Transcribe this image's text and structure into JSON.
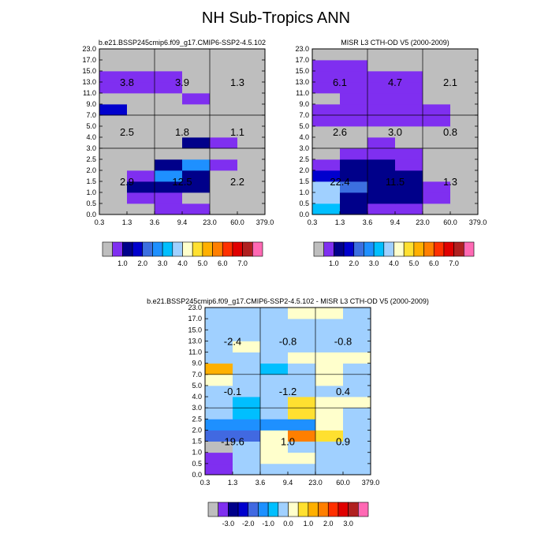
{
  "title": "NH Sub-Tropics ANN",
  "chart_data": {
    "type": "heatmap",
    "x_tick_labels": [
      "0.3",
      "1.3",
      "3.6",
      "9.4",
      "23.0",
      "60.0",
      "379.0"
    ],
    "y_tick_labels": [
      "0.0",
      "0.5",
      "1.0",
      "1.5",
      "2.0",
      "2.5",
      "3.0",
      "4.0",
      "5.0",
      "7.0",
      "9.0",
      "11.0",
      "13.0",
      "15.0",
      "17.0",
      "23.0"
    ],
    "colors": {
      "background": "#bebebe",
      "s0": "#bebebe",
      "s1": "#7f2ff0",
      "s2": "#00008a",
      "s3": "#0000cd",
      "s4": "#3c6fe0",
      "s5": "#1e90ff",
      "s6": "#00bfff",
      "s7": "#a0d0ff",
      "s8": "#ffffcc",
      "s9": "#ffe030",
      "s10": "#ffb000",
      "s11": "#ff7f00",
      "s12": "#ff3000",
      "s13": "#e00000",
      "s14": "#b02020",
      "s15": "#ff69b4",
      "d0": "#bebebe",
      "d1": "#7f2ff0",
      "d2": "#00008a",
      "d3": "#0000cd",
      "d4": "#4169e1",
      "d5": "#1e90ff",
      "d6": "#00bfff",
      "d7": "#a0d0ff",
      "d8": "#ffffcc",
      "d9": "#ffe030",
      "d10": "#ffb000",
      "d11": "#ff7f00",
      "d12": "#ff3000",
      "d13": "#e00000",
      "d14": "#b02020",
      "d15": "#ff69b4"
    },
    "panels": [
      {
        "name": "model",
        "title": "b.e21.BSSP245cmip6.f09_g17.CMIP6-SSP2-4.5.102",
        "summary_values": [
          {
            "label": "3.8",
            "col": "low",
            "row": "high"
          },
          {
            "label": "3.9",
            "col": "mid",
            "row": "high"
          },
          {
            "label": "1.3",
            "col": "high",
            "row": "high"
          },
          {
            "label": "2.5",
            "col": "low",
            "row": "mid"
          },
          {
            "label": "1.8",
            "col": "mid",
            "row": "mid"
          },
          {
            "label": "1.1",
            "col": "high",
            "row": "mid"
          },
          {
            "label": "2.9",
            "col": "low",
            "row": "low"
          },
          {
            "label": "12.5",
            "col": "mid",
            "row": "low"
          },
          {
            "label": "2.2",
            "col": "high",
            "row": "low"
          }
        ],
        "cells": [
          [
            0,
            0,
            1,
            1,
            0,
            0
          ],
          [
            0,
            1,
            1,
            0,
            0,
            0
          ],
          [
            0,
            2,
            2,
            2,
            0,
            0
          ],
          [
            0,
            1,
            5,
            2,
            0,
            0
          ],
          [
            0,
            0,
            2,
            5,
            1,
            0
          ],
          [
            0,
            0,
            0,
            0,
            0,
            0
          ],
          [
            0,
            0,
            0,
            2,
            1,
            0
          ],
          [
            0,
            0,
            0,
            0,
            0,
            0
          ],
          [
            0,
            0,
            0,
            0,
            0,
            0
          ],
          [
            3,
            0,
            0,
            0,
            0,
            0
          ],
          [
            0,
            0,
            0,
            1,
            0,
            0
          ],
          [
            1,
            1,
            1,
            0,
            0,
            0
          ],
          [
            1,
            1,
            1,
            0,
            0,
            0
          ],
          [
            0,
            0,
            0,
            0,
            0,
            0
          ],
          [
            0,
            0,
            0,
            0,
            0,
            0
          ]
        ]
      },
      {
        "name": "obs",
        "title": "MISR L3 CTH-OD V5 (2000-2009)",
        "summary_values": [
          {
            "label": "6.1",
            "col": "low",
            "row": "high"
          },
          {
            "label": "4.7",
            "col": "mid",
            "row": "high"
          },
          {
            "label": "2.1",
            "col": "high",
            "row": "high"
          },
          {
            "label": "2.6",
            "col": "low",
            "row": "mid"
          },
          {
            "label": "3.0",
            "col": "mid",
            "row": "mid"
          },
          {
            "label": "0.8",
            "col": "high",
            "row": "mid"
          },
          {
            "label": "22.4",
            "col": "low",
            "row": "low"
          },
          {
            "label": "11.5",
            "col": "mid",
            "row": "low"
          },
          {
            "label": "1.3",
            "col": "high",
            "row": "low"
          }
        ],
        "cells": [
          [
            6,
            2,
            1,
            1,
            0,
            0
          ],
          [
            7,
            2,
            2,
            2,
            1,
            0
          ],
          [
            7,
            4,
            2,
            2,
            1,
            0
          ],
          [
            3,
            2,
            2,
            2,
            0,
            0
          ],
          [
            1,
            2,
            2,
            1,
            0,
            0
          ],
          [
            0,
            1,
            1,
            1,
            0,
            0
          ],
          [
            0,
            0,
            1,
            0,
            0,
            0
          ],
          [
            0,
            0,
            0,
            0,
            0,
            0
          ],
          [
            1,
            1,
            1,
            1,
            1,
            0
          ],
          [
            1,
            1,
            1,
            1,
            1,
            0
          ],
          [
            0,
            1,
            1,
            1,
            0,
            0
          ],
          [
            1,
            1,
            1,
            1,
            0,
            0
          ],
          [
            1,
            1,
            1,
            1,
            0,
            0
          ],
          [
            1,
            1,
            0,
            0,
            0,
            0
          ],
          [
            0,
            0,
            0,
            0,
            0,
            0
          ]
        ]
      },
      {
        "name": "diff",
        "title": "b.e21.BSSP245cmip6.f09_g17.CMIP6-SSP2-4.5.102 - MISR L3 CTH-OD V5 (2000-2009)",
        "summary_values": [
          {
            "label": "-2.4",
            "col": "low",
            "row": "high"
          },
          {
            "label": "-0.8",
            "col": "mid",
            "row": "high"
          },
          {
            "label": "-0.8",
            "col": "high",
            "row": "high"
          },
          {
            "label": "-0.1",
            "col": "low",
            "row": "mid"
          },
          {
            "label": "-1.2",
            "col": "mid",
            "row": "mid"
          },
          {
            "label": "0.4",
            "col": "high",
            "row": "mid"
          },
          {
            "label": "-19.6",
            "col": "low",
            "row": "low"
          },
          {
            "label": "1.0",
            "col": "mid",
            "row": "low"
          },
          {
            "label": "0.9",
            "col": "high",
            "row": "low"
          }
        ],
        "cells": [
          [
            1,
            7,
            7,
            7,
            7,
            7
          ],
          [
            1,
            7,
            8,
            8,
            7,
            7
          ],
          [
            0,
            7,
            8,
            7,
            7,
            7
          ],
          [
            4,
            4,
            8,
            11,
            9,
            7
          ],
          [
            5,
            5,
            5,
            5,
            8,
            7
          ],
          [
            7,
            6,
            7,
            9,
            8,
            7
          ],
          [
            7,
            6,
            7,
            9,
            8,
            8
          ],
          [
            7,
            7,
            7,
            7,
            7,
            7
          ],
          [
            8,
            7,
            7,
            7,
            8,
            7
          ],
          [
            10,
            7,
            6,
            7,
            8,
            7
          ],
          [
            7,
            7,
            7,
            8,
            8,
            8
          ],
          [
            7,
            8,
            7,
            7,
            7,
            7
          ],
          [
            7,
            7,
            7,
            7,
            7,
            7
          ],
          [
            7,
            7,
            7,
            7,
            7,
            7
          ],
          [
            7,
            7,
            7,
            8,
            8,
            7
          ]
        ]
      }
    ],
    "colorbars": [
      {
        "name": "model",
        "labels": [
          "1.0",
          "2.0",
          "3.0",
          "4.0",
          "5.0",
          "6.0",
          "7.0"
        ]
      },
      {
        "name": "obs",
        "labels": [
          "1.0",
          "2.0",
          "3.0",
          "4.0",
          "5.0",
          "6.0",
          "7.0"
        ]
      },
      {
        "name": "diff",
        "labels": [
          "-3.0",
          "-2.0",
          "-1.0",
          "0.0",
          "1.0",
          "2.0",
          "3.0"
        ]
      }
    ]
  }
}
